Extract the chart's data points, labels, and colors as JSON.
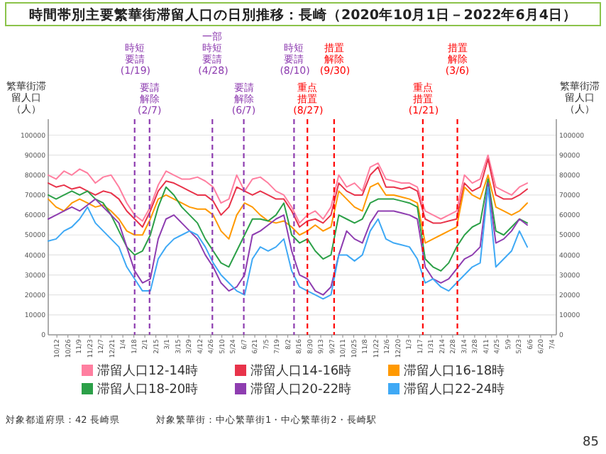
{
  "chart_data": {
    "type": "line",
    "title": "時間帯別主要繁華街滞留人口の日別推移：長崎（2020年10月1日－2022年6月4日）",
    "ylabel": "繁華街滞留人口（人）",
    "y2label": "繁華街滞留人口（人）",
    "x": [
      "2020-10-01",
      "2020-10-11",
      "2020-10-21",
      "2020-10-31",
      "2020-11-10",
      "2020-11-20",
      "2020-11-30",
      "2020-12-10",
      "2020-12-20",
      "2020-12-30",
      "2021-01-09",
      "2021-01-19",
      "2021-01-29",
      "2021-02-08",
      "2021-02-18",
      "2021-02-28",
      "2021-03-10",
      "2021-03-20",
      "2021-03-30",
      "2021-04-09",
      "2021-04-19",
      "2021-04-29",
      "2021-05-09",
      "2021-05-19",
      "2021-05-29",
      "2021-06-08",
      "2021-06-18",
      "2021-06-28",
      "2021-07-08",
      "2021-07-18",
      "2021-07-28",
      "2021-08-07",
      "2021-08-17",
      "2021-08-27",
      "2021-09-06",
      "2021-09-16",
      "2021-09-26",
      "2021-10-06",
      "2021-10-16",
      "2021-10-26",
      "2021-11-05",
      "2021-11-15",
      "2021-11-25",
      "2021-12-05",
      "2021-12-15",
      "2021-12-25",
      "2022-01-04",
      "2022-01-14",
      "2022-01-24",
      "2022-02-03",
      "2022-02-13",
      "2022-02-23",
      "2022-03-05",
      "2022-03-15",
      "2022-03-25",
      "2022-04-04",
      "2022-04-14",
      "2022-04-24",
      "2022-05-04",
      "2022-05-14",
      "2022-05-24",
      "2022-06-03"
    ],
    "series": [
      {
        "name": "滞留人口12-14時",
        "color": "#ff7fa0",
        "values": [
          80000,
          78000,
          82000,
          80000,
          83000,
          81000,
          76000,
          79000,
          80000,
          74000,
          66000,
          60000,
          57000,
          64000,
          75000,
          82000,
          80000,
          78000,
          78000,
          79000,
          77000,
          74000,
          66000,
          68000,
          80000,
          72000,
          78000,
          79000,
          76000,
          72000,
          70000,
          64000,
          56000,
          60000,
          62000,
          58000,
          64000,
          80000,
          74000,
          76000,
          72000,
          84000,
          86000,
          78000,
          77000,
          76000,
          76000,
          74000,
          62000,
          60000,
          58000,
          60000,
          62000,
          80000,
          76000,
          78000,
          90000,
          74000,
          72000,
          70000,
          74000,
          76000
        ]
      },
      {
        "name": "滞留人口14-16時",
        "color": "#e8334a",
        "values": [
          76000,
          74000,
          75000,
          73000,
          74000,
          72000,
          70000,
          72000,
          71000,
          68000,
          62000,
          58000,
          54000,
          62000,
          72000,
          77000,
          76000,
          74000,
          72000,
          70000,
          70000,
          67000,
          60000,
          64000,
          74000,
          72000,
          70000,
          72000,
          70000,
          68000,
          68000,
          62000,
          54000,
          57000,
          58000,
          56000,
          60000,
          76000,
          72000,
          70000,
          70000,
          80000,
          84000,
          74000,
          74000,
          73000,
          74000,
          72000,
          58000,
          56000,
          56000,
          57000,
          58000,
          76000,
          72000,
          74000,
          88000,
          70000,
          68000,
          68000,
          70000,
          73000
        ]
      },
      {
        "name": "滞留人口16-18時",
        "color": "#ff9900",
        "values": [
          68000,
          64000,
          62000,
          66000,
          68000,
          66000,
          64000,
          65000,
          62000,
          58000,
          52000,
          50000,
          50000,
          58000,
          68000,
          70000,
          68000,
          66000,
          64000,
          63000,
          63000,
          60000,
          52000,
          48000,
          60000,
          66000,
          64000,
          60000,
          57000,
          56000,
          57000,
          54000,
          50000,
          52000,
          55000,
          52000,
          54000,
          72000,
          68000,
          64000,
          62000,
          74000,
          76000,
          70000,
          70000,
          69000,
          68000,
          66000,
          46000,
          48000,
          50000,
          52000,
          54000,
          74000,
          70000,
          68000,
          80000,
          64000,
          62000,
          60000,
          62000,
          66000
        ]
      },
      {
        "name": "滞留人口18-20時",
        "color": "#2ca048",
        "values": [
          70000,
          68000,
          70000,
          72000,
          70000,
          72000,
          68000,
          66000,
          60000,
          52000,
          44000,
          40000,
          42000,
          50000,
          64000,
          74000,
          70000,
          64000,
          60000,
          56000,
          48000,
          42000,
          36000,
          34000,
          42000,
          50000,
          58000,
          58000,
          57000,
          60000,
          66000,
          50000,
          46000,
          48000,
          42000,
          38000,
          40000,
          60000,
          58000,
          56000,
          58000,
          66000,
          68000,
          68000,
          68000,
          67000,
          66000,
          64000,
          38000,
          34000,
          32000,
          36000,
          44000,
          50000,
          54000,
          56000,
          78000,
          52000,
          50000,
          54000,
          58000,
          56000
        ]
      },
      {
        "name": "滞留人口20-22時",
        "color": "#8e3db0",
        "values": [
          58000,
          60000,
          62000,
          64000,
          62000,
          65000,
          68000,
          64000,
          60000,
          56000,
          44000,
          32000,
          26000,
          28000,
          48000,
          58000,
          60000,
          56000,
          52000,
          48000,
          40000,
          34000,
          26000,
          22000,
          24000,
          30000,
          50000,
          52000,
          55000,
          58000,
          60000,
          42000,
          30000,
          28000,
          22000,
          20000,
          24000,
          40000,
          52000,
          48000,
          46000,
          56000,
          62000,
          62000,
          62000,
          61000,
          60000,
          58000,
          34000,
          28000,
          26000,
          28000,
          33000,
          38000,
          40000,
          44000,
          76000,
          46000,
          48000,
          52000,
          58000,
          55000
        ]
      },
      {
        "name": "滞留人口22-24時",
        "color": "#3fa9f5",
        "values": [
          47000,
          48000,
          52000,
          54000,
          58000,
          64000,
          56000,
          52000,
          48000,
          44000,
          34000,
          28000,
          22000,
          22000,
          38000,
          44000,
          48000,
          50000,
          52000,
          50000,
          44000,
          36000,
          30000,
          26000,
          22000,
          20000,
          38000,
          44000,
          42000,
          44000,
          48000,
          32000,
          24000,
          22000,
          20000,
          18000,
          20000,
          40000,
          40000,
          37000,
          40000,
          52000,
          58000,
          48000,
          46000,
          45000,
          44000,
          38000,
          26000,
          28000,
          24000,
          22000,
          26000,
          30000,
          34000,
          36000,
          74000,
          34000,
          38000,
          42000,
          52000,
          44000
        ]
      }
    ],
    "xlim": [
      "2020-10-01",
      "2022-07-10"
    ],
    "xticks": [
      {
        "value": "2020-10-12",
        "label": "10/12"
      },
      {
        "value": "2020-10-26",
        "label": "10/26"
      },
      {
        "value": "2020-11-09",
        "label": "11/9"
      },
      {
        "value": "2020-11-23",
        "label": "11/23"
      },
      {
        "value": "2020-12-07",
        "label": "12/7"
      },
      {
        "value": "2020-12-21",
        "label": "12/21"
      },
      {
        "value": "2021-01-04",
        "label": "1/4"
      },
      {
        "value": "2021-01-18",
        "label": "1/18"
      },
      {
        "value": "2021-02-01",
        "label": "2/1"
      },
      {
        "value": "2021-02-15",
        "label": "2/15"
      },
      {
        "value": "2021-03-01",
        "label": "3/1"
      },
      {
        "value": "2021-03-15",
        "label": "3/15"
      },
      {
        "value": "2021-03-29",
        "label": "3/29"
      },
      {
        "value": "2021-04-12",
        "label": "4/12"
      },
      {
        "value": "2021-04-26",
        "label": "4/26"
      },
      {
        "value": "2021-05-10",
        "label": "5/10"
      },
      {
        "value": "2021-05-24",
        "label": "5/24"
      },
      {
        "value": "2021-06-07",
        "label": "6/7"
      },
      {
        "value": "2021-06-21",
        "label": "6/21"
      },
      {
        "value": "2021-07-05",
        "label": "7/5"
      },
      {
        "value": "2021-07-19",
        "label": "7/19"
      },
      {
        "value": "2021-08-02",
        "label": "8/2"
      },
      {
        "value": "2021-08-16",
        "label": "8/16"
      },
      {
        "value": "2021-08-30",
        "label": "8/30"
      },
      {
        "value": "2021-09-13",
        "label": "9/13"
      },
      {
        "value": "2021-09-27",
        "label": "9/27"
      },
      {
        "value": "2021-10-11",
        "label": "10/11"
      },
      {
        "value": "2021-10-25",
        "label": "10/25"
      },
      {
        "value": "2021-11-08",
        "label": "11/8"
      },
      {
        "value": "2021-11-22",
        "label": "11/22"
      },
      {
        "value": "2021-12-06",
        "label": "12/6"
      },
      {
        "value": "2021-12-20",
        "label": "12/20"
      },
      {
        "value": "2022-01-03",
        "label": "1/3"
      },
      {
        "value": "2022-01-17",
        "label": "1/17"
      },
      {
        "value": "2022-01-31",
        "label": "1/31"
      },
      {
        "value": "2022-02-14",
        "label": "2/14"
      },
      {
        "value": "2022-02-28",
        "label": "2/28"
      },
      {
        "value": "2022-03-14",
        "label": "3/14"
      },
      {
        "value": "2022-03-28",
        "label": "3/28"
      },
      {
        "value": "2022-04-11",
        "label": "4/11"
      },
      {
        "value": "2022-04-25",
        "label": "4/25"
      },
      {
        "value": "2022-05-09",
        "label": "5/9"
      },
      {
        "value": "2022-05-23",
        "label": "5/23"
      },
      {
        "value": "2022-06-06",
        "label": "6/6"
      },
      {
        "value": "2022-06-20",
        "label": "6/20"
      },
      {
        "value": "2022-07-04",
        "label": "7/4"
      }
    ],
    "ylim": [
      0,
      108000
    ],
    "yticks": [
      0,
      10000,
      20000,
      30000,
      40000,
      50000,
      60000,
      70000,
      80000,
      90000,
      100000
    ],
    "y2lim": [
      0,
      108000
    ],
    "y2ticks": [
      0,
      10000,
      20000,
      30000,
      40000,
      50000,
      60000,
      70000,
      80000,
      90000,
      100000
    ],
    "grid": "y",
    "legend": "bottom",
    "marker": "none",
    "line_style": "solid",
    "ref_lines": [
      {
        "axis": "x",
        "value": "2021-01-19",
        "label": "時短要請(1/19)",
        "color": "#8e3db0",
        "line_style": "dashed"
      },
      {
        "axis": "x",
        "value": "2021-02-07",
        "label": "要請解除(2/7)",
        "color": "#8e3db0",
        "line_style": "dashed"
      },
      {
        "axis": "x",
        "value": "2021-04-28",
        "label": "一部時短要請(4/28)",
        "color": "#8e3db0",
        "line_style": "dashed"
      },
      {
        "axis": "x",
        "value": "2021-06-07",
        "label": "要請解除(6/7)",
        "color": "#8e3db0",
        "line_style": "dashed"
      },
      {
        "axis": "x",
        "value": "2021-08-10",
        "label": "時短要請(8/10)",
        "color": "#8e3db0",
        "line_style": "dashed"
      },
      {
        "axis": "x",
        "value": "2021-08-27",
        "label": "重点措置(8/27)",
        "color": "#ff0000",
        "line_style": "dashed"
      },
      {
        "axis": "x",
        "value": "2021-09-30",
        "label": "措置解除(9/30)",
        "color": "#ff0000",
        "line_style": "dashed"
      },
      {
        "axis": "x",
        "value": "2022-01-21",
        "label": "重点措置(1/21)",
        "color": "#ff0000",
        "line_style": "dashed"
      },
      {
        "axis": "x",
        "value": "2022-03-06",
        "label": "措置解除(3/6)",
        "color": "#ff0000",
        "line_style": "dashed"
      }
    ],
    "annotations": [
      "対象都道府県：42 長崎県",
      "対象繁華街：中心繁華街1・中心繁華街2・長崎駅",
      "85"
    ]
  }
}
